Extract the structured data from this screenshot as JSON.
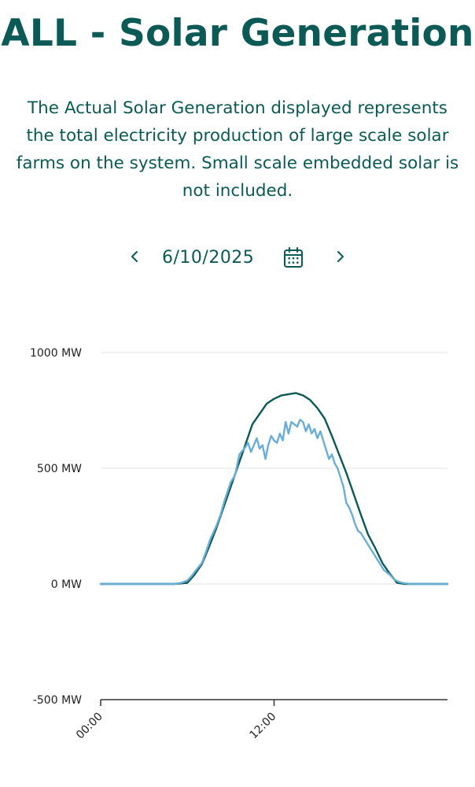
{
  "header": {
    "title": "ALL - Solar Generation",
    "description": "The Actual Solar Generation displayed represents the total electricity production of large scale solar farms on the system. Small scale embedded solar is not included."
  },
  "date_nav": {
    "date": "6/10/2025",
    "prev_icon": "chevron-left-icon",
    "next_icon": "chevron-right-icon",
    "calendar_icon": "calendar-icon"
  },
  "colors": {
    "title": "#0b5a55",
    "actual_line": "#0b5a55",
    "forecast_line": "#6aaed8",
    "grid": "#e3e3e3",
    "axis": "#333333"
  },
  "chart_data": {
    "type": "line",
    "ylim": [
      -500,
      1000
    ],
    "y_ticks": [
      {
        "value": 1000,
        "label": "1000 MW"
      },
      {
        "value": 500,
        "label": "500 MW"
      },
      {
        "value": 0,
        "label": "0 MW"
      },
      {
        "value": -500,
        "label": "-500 MW"
      }
    ],
    "xlim": [
      0,
      24
    ],
    "x_ticks": [
      {
        "value": 0,
        "label": "00:00"
      },
      {
        "value": 12,
        "label": "12:00"
      }
    ],
    "grid": true,
    "series": [
      {
        "key": "dark",
        "x": [
          0,
          5,
          5.5,
          6,
          6.5,
          7,
          7.5,
          8,
          8.5,
          9,
          9.5,
          10,
          10.5,
          11,
          11.5,
          12,
          12.5,
          13,
          13.5,
          14,
          14.5,
          15,
          15.5,
          16,
          16.5,
          17,
          17.5,
          18,
          18.5,
          19,
          19.5,
          20,
          20.5,
          21,
          21.5,
          22,
          23,
          24
        ],
        "y": [
          0,
          0,
          2,
          5,
          40,
          85,
          160,
          240,
          330,
          420,
          510,
          600,
          690,
          735,
          780,
          800,
          815,
          820,
          825,
          815,
          795,
          760,
          715,
          640,
          560,
          480,
          390,
          300,
          215,
          155,
          90,
          45,
          5,
          0,
          0,
          0,
          0,
          0
        ]
      },
      {
        "key": "light",
        "x": [
          0,
          5,
          5.3,
          5.6,
          6,
          6.3,
          6.6,
          7,
          7.3,
          7.6,
          8,
          8.3,
          8.6,
          9,
          9.3,
          9.6,
          10,
          10.2,
          10.4,
          10.6,
          10.8,
          11,
          11.2,
          11.4,
          11.6,
          11.8,
          12,
          12.2,
          12.4,
          12.6,
          12.8,
          13,
          13.2,
          13.4,
          13.6,
          13.8,
          14,
          14.2,
          14.4,
          14.6,
          14.8,
          15,
          15.2,
          15.4,
          15.6,
          15.8,
          16,
          16.2,
          16.4,
          16.6,
          16.8,
          17,
          17.2,
          17.4,
          17.6,
          17.8,
          18,
          18.3,
          18.6,
          19,
          19.3,
          19.6,
          20,
          20.3,
          20.6,
          21,
          21.5,
          22,
          23,
          24
        ],
        "y": [
          0,
          0,
          2,
          5,
          15,
          35,
          60,
          90,
          140,
          195,
          250,
          300,
          365,
          440,
          470,
          560,
          590,
          610,
          570,
          600,
          630,
          585,
          600,
          540,
          600,
          640,
          620,
          610,
          650,
          620,
          700,
          650,
          700,
          690,
          680,
          710,
          700,
          660,
          690,
          650,
          670,
          630,
          660,
          620,
          580,
          540,
          560,
          520,
          500,
          460,
          420,
          350,
          330,
          300,
          260,
          230,
          220,
          190,
          160,
          120,
          90,
          60,
          40,
          20,
          10,
          3,
          0,
          0,
          0,
          0
        ]
      }
    ]
  }
}
